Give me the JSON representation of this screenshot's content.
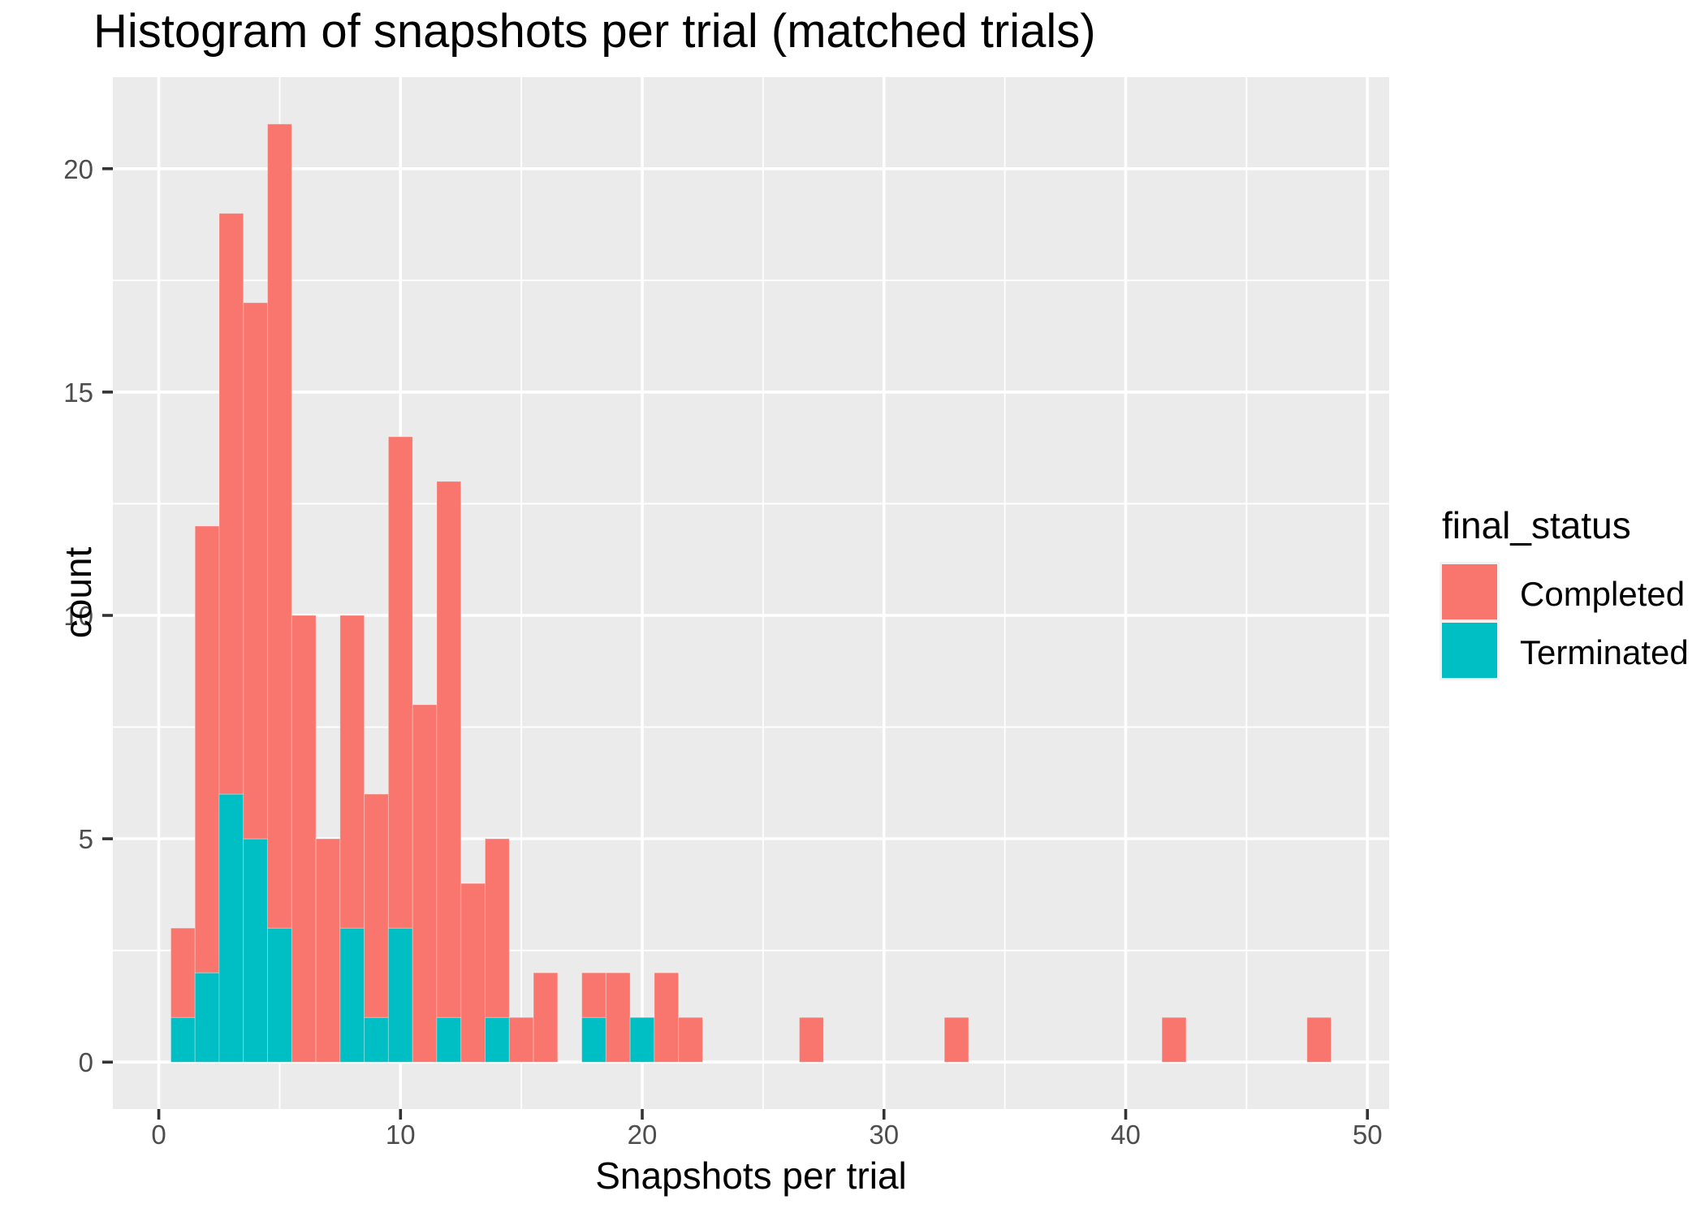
{
  "chart_data": {
    "type": "bar",
    "subtype": "stacked-histogram",
    "title": "Histogram of snapshots per trial (matched trials)",
    "xlabel": "Snapshots per trial",
    "ylabel": "count",
    "legend_title": "final_status",
    "legend_position": "right",
    "grid": true,
    "binwidth": 1,
    "xlim": [
      -1.9,
      50.9
    ],
    "ylim": [
      -1.05,
      22.05
    ],
    "x_ticks": [
      0,
      10,
      20,
      30,
      40,
      50
    ],
    "x_minor_ticks": [
      5,
      15,
      25,
      35,
      45
    ],
    "y_ticks": [
      0,
      5,
      10,
      15,
      20
    ],
    "y_minor_ticks": [
      2.5,
      7.5,
      12.5,
      17.5
    ],
    "series": [
      {
        "name": "Completed",
        "color": "#F8766D"
      },
      {
        "name": "Terminated",
        "color": "#00BFC4"
      }
    ],
    "bins": [
      {
        "x": 1,
        "completed": 2,
        "terminated": 1
      },
      {
        "x": 2,
        "completed": 10,
        "terminated": 2
      },
      {
        "x": 3,
        "completed": 13,
        "terminated": 6
      },
      {
        "x": 4,
        "completed": 12,
        "terminated": 5
      },
      {
        "x": 5,
        "completed": 18,
        "terminated": 3
      },
      {
        "x": 6,
        "completed": 10,
        "terminated": 0
      },
      {
        "x": 7,
        "completed": 5,
        "terminated": 0
      },
      {
        "x": 8,
        "completed": 7,
        "terminated": 3
      },
      {
        "x": 9,
        "completed": 5,
        "terminated": 1
      },
      {
        "x": 10,
        "completed": 11,
        "terminated": 3
      },
      {
        "x": 11,
        "completed": 8,
        "terminated": 0
      },
      {
        "x": 12,
        "completed": 12,
        "terminated": 1
      },
      {
        "x": 13,
        "completed": 4,
        "terminated": 0
      },
      {
        "x": 14,
        "completed": 4,
        "terminated": 1
      },
      {
        "x": 15,
        "completed": 1,
        "terminated": 0
      },
      {
        "x": 16,
        "completed": 2,
        "terminated": 0
      },
      {
        "x": 18,
        "completed": 1,
        "terminated": 1
      },
      {
        "x": 19,
        "completed": 2,
        "terminated": 0
      },
      {
        "x": 20,
        "completed": 0,
        "terminated": 1
      },
      {
        "x": 21,
        "completed": 2,
        "terminated": 0
      },
      {
        "x": 22,
        "completed": 1,
        "terminated": 0
      },
      {
        "x": 27,
        "completed": 1,
        "terminated": 0
      },
      {
        "x": 33,
        "completed": 1,
        "terminated": 0
      },
      {
        "x": 42,
        "completed": 1,
        "terminated": 0
      },
      {
        "x": 48,
        "completed": 1,
        "terminated": 0
      }
    ]
  },
  "legend": {
    "title": "final_status",
    "items": [
      {
        "label": "Completed",
        "color": "#F8766D"
      },
      {
        "label": "Terminated",
        "color": "#00BFC4"
      }
    ]
  },
  "axes": {
    "x_tick_labels": [
      "0",
      "10",
      "20",
      "30",
      "40",
      "50"
    ],
    "y_tick_labels": [
      "0",
      "5",
      "10",
      "15",
      "20"
    ]
  },
  "style": {
    "panel_bg": "#EBEBEB",
    "grid_color": "#FFFFFF",
    "tick_mark_color": "#333333",
    "tick_text_color": "#4D4D4D",
    "title_color": "#000000",
    "legend_key_bg": "#F2F2F2",
    "figure_bg": "#FFFFFF"
  }
}
